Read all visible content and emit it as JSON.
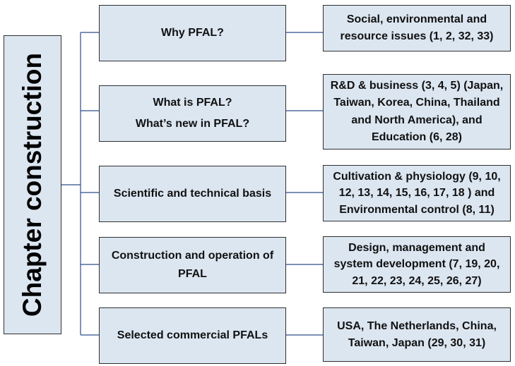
{
  "left_label": "Chapter construction",
  "rows": [
    {
      "topic": [
        "Why PFAL?"
      ],
      "detail": [
        "Social, environmental and",
        "resource issues (1, 2, 32, 33)"
      ]
    },
    {
      "topic": [
        "What is PFAL?",
        "What’s new in PFAL?"
      ],
      "detail": [
        "R&D & business (3, 4, 5) (Japan,",
        "Taiwan, Korea, China, Thailand",
        "and North America), and",
        "Education (6, 28)"
      ]
    },
    {
      "topic": [
        "Scientific and technical basis"
      ],
      "detail": [
        "Cultivation & physiology (9, 10,",
        "12, 13, 14, 15, 16, 17, 18 ) and",
        "Environmental control (8, 11)"
      ]
    },
    {
      "topic": [
        "Construction and operation of",
        "PFAL"
      ],
      "detail": [
        "Design, management and",
        "system development (7, 19, 20,",
        "21, 22, 23, 24, 25, 26, 27)"
      ]
    },
    {
      "topic": [
        "Selected commercial PFALs"
      ],
      "detail": [
        "USA, The Netherlands, China,",
        "Taiwan, Japan (29, 30, 31)"
      ]
    }
  ]
}
